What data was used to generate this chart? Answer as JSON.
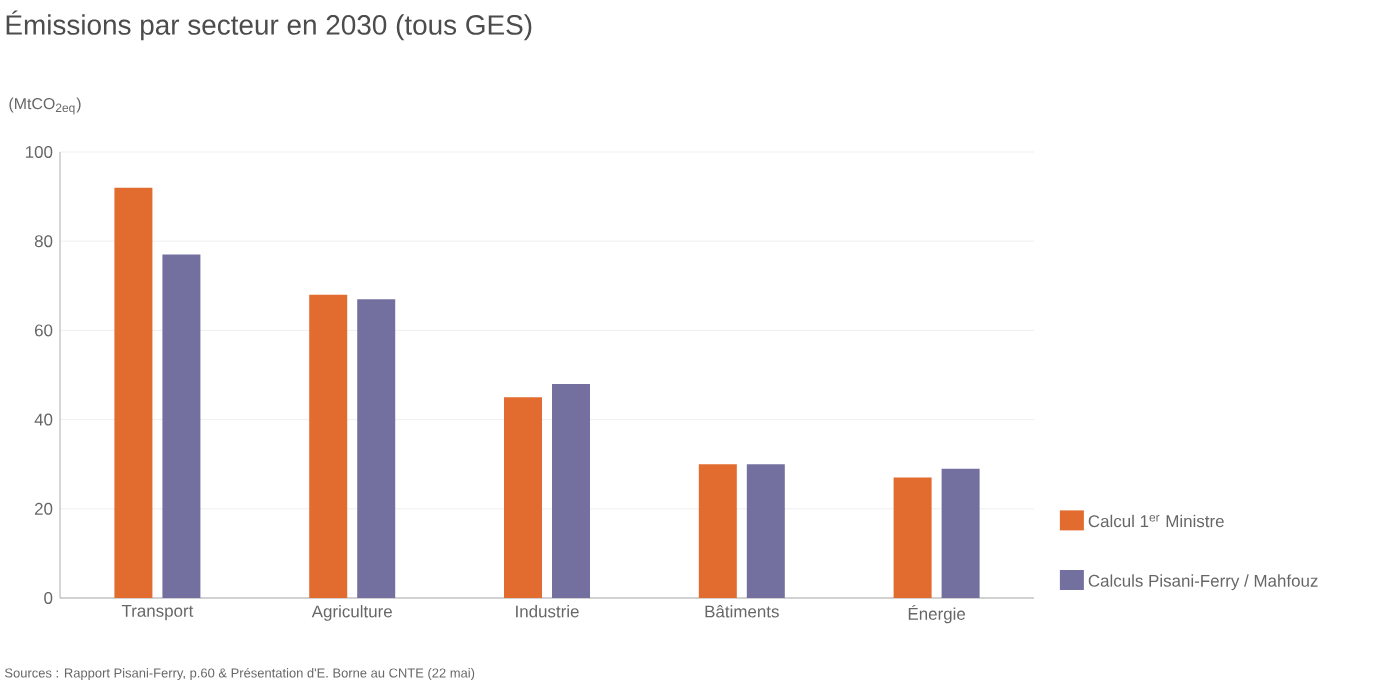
{
  "chart_data": {
    "type": "bar",
    "title": "Émissions par secteur en 2030 (tous GES)",
    "ylabel": "(MtCO$_{2eq}$)",
    "categories": [
      "Transport",
      "Agriculture",
      "Industrie",
      "Bâtiments",
      "Énergie"
    ],
    "series": [
      {
        "name": "Calcul 1$^{er}$ Ministre",
        "color": "#e26b2f",
        "values": [
          92,
          68,
          45,
          30,
          27
        ]
      },
      {
        "name": "Calculs Pisani-Ferry / Mahfouz",
        "color": "#7370a0",
        "values": [
          77,
          67,
          48,
          30,
          29
        ]
      }
    ],
    "ylim": [
      0,
      100
    ],
    "yticks": [
      0,
      20,
      40,
      60,
      80,
      100
    ],
    "grid": "y",
    "legend": "right",
    "annotations": [
      "Sources : Rapport Pisani-Ferry, p.60 & Présentation d'E. Borne au CNTE (22 mai)"
    ]
  }
}
